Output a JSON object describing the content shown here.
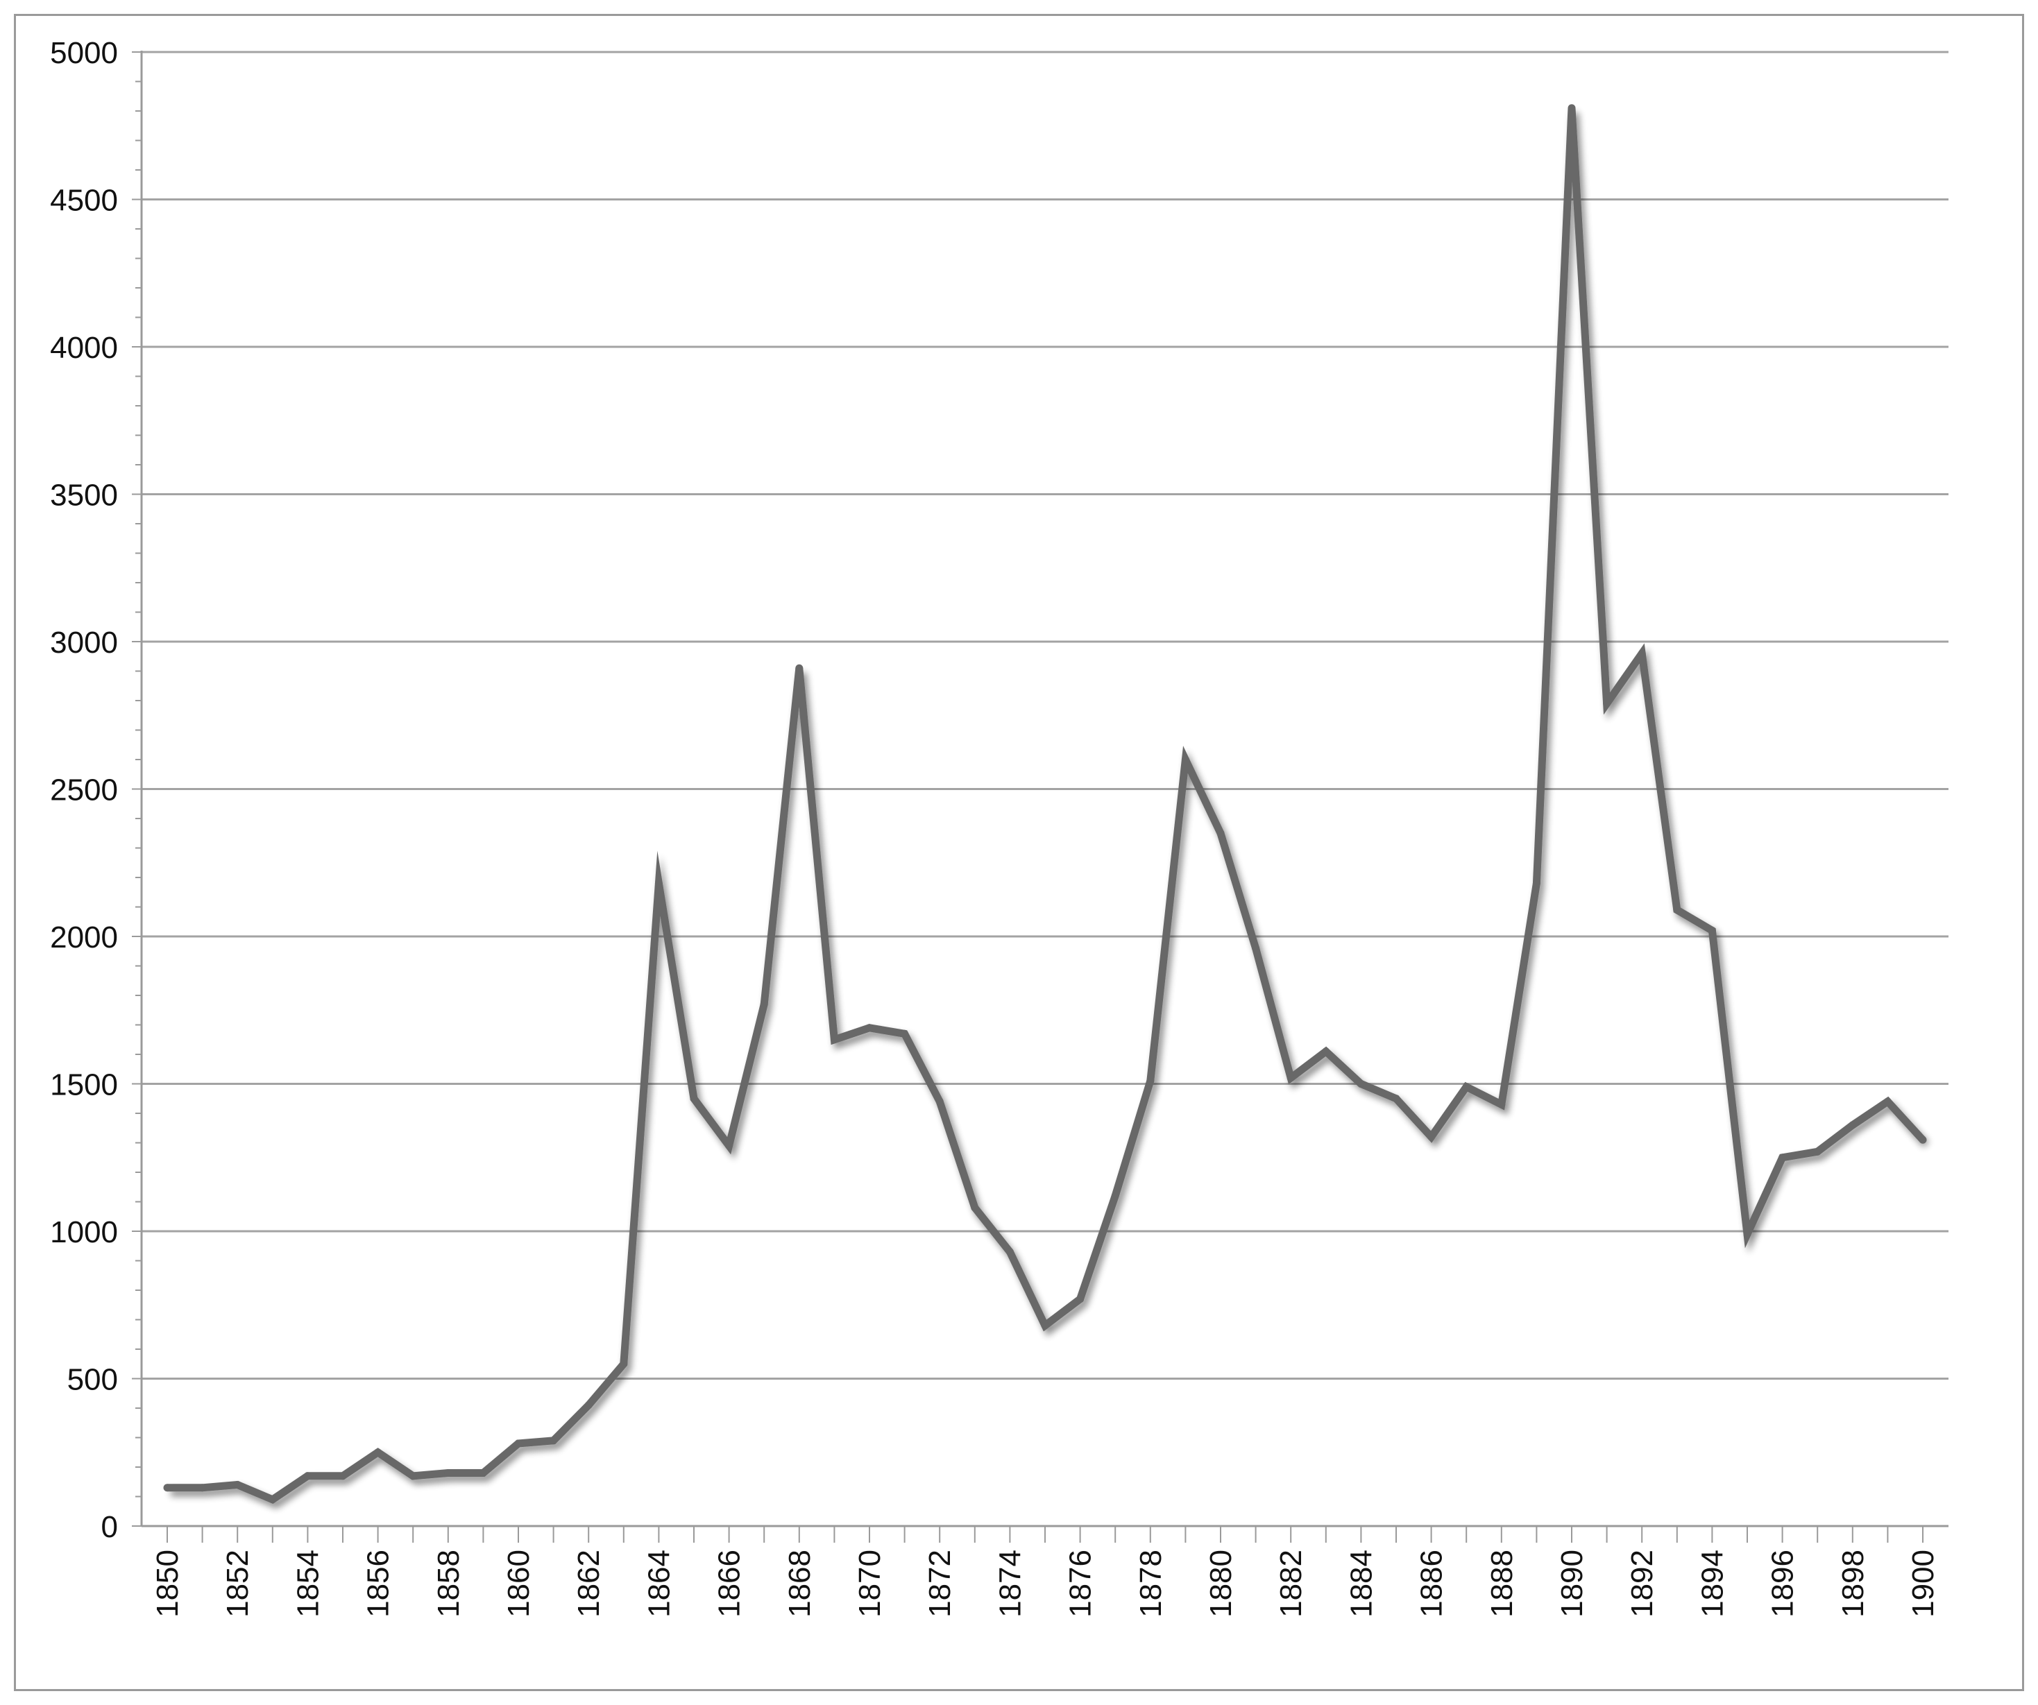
{
  "chart_data": {
    "type": "line",
    "title": "",
    "xlabel": "",
    "ylabel": "",
    "x": [
      1850,
      1851,
      1852,
      1853,
      1854,
      1855,
      1856,
      1857,
      1858,
      1859,
      1860,
      1861,
      1862,
      1863,
      1864,
      1865,
      1866,
      1867,
      1868,
      1869,
      1870,
      1871,
      1872,
      1873,
      1874,
      1875,
      1876,
      1877,
      1878,
      1879,
      1880,
      1881,
      1882,
      1883,
      1884,
      1885,
      1886,
      1887,
      1888,
      1889,
      1890,
      1891,
      1892,
      1893,
      1894,
      1895,
      1896,
      1897,
      1898,
      1899,
      1900
    ],
    "series": [
      {
        "name": "",
        "color": "#686868",
        "values": [
          130,
          130,
          140,
          90,
          170,
          170,
          250,
          170,
          180,
          180,
          280,
          290,
          410,
          550,
          2180,
          1450,
          1290,
          1770,
          2910,
          1650,
          1690,
          1670,
          1440,
          1080,
          930,
          680,
          770,
          1120,
          1510,
          2600,
          2350,
          1960,
          1520,
          1610,
          1500,
          1450,
          1320,
          1490,
          1430,
          2180,
          4810,
          2790,
          2960,
          2090,
          2020,
          990,
          1250,
          1270,
          1360,
          1440,
          1310
        ]
      }
    ],
    "ylim": [
      0,
      5000
    ],
    "xlim": [
      1850,
      1900
    ],
    "y_ticks": [
      "0",
      "500",
      "1000",
      "1500",
      "2000",
      "2500",
      "3000",
      "3500",
      "4000",
      "4500",
      "5000"
    ],
    "x_ticks": [
      "1850",
      "1852",
      "1854",
      "1856",
      "1858",
      "1860",
      "1862",
      "1864",
      "1866",
      "1868",
      "1870",
      "1872",
      "1874",
      "1876",
      "1878",
      "1880",
      "1882",
      "1884",
      "1886",
      "1888",
      "1890",
      "1892",
      "1894",
      "1896",
      "1898",
      "1900"
    ],
    "grid": "horizontal",
    "legend": "none"
  }
}
